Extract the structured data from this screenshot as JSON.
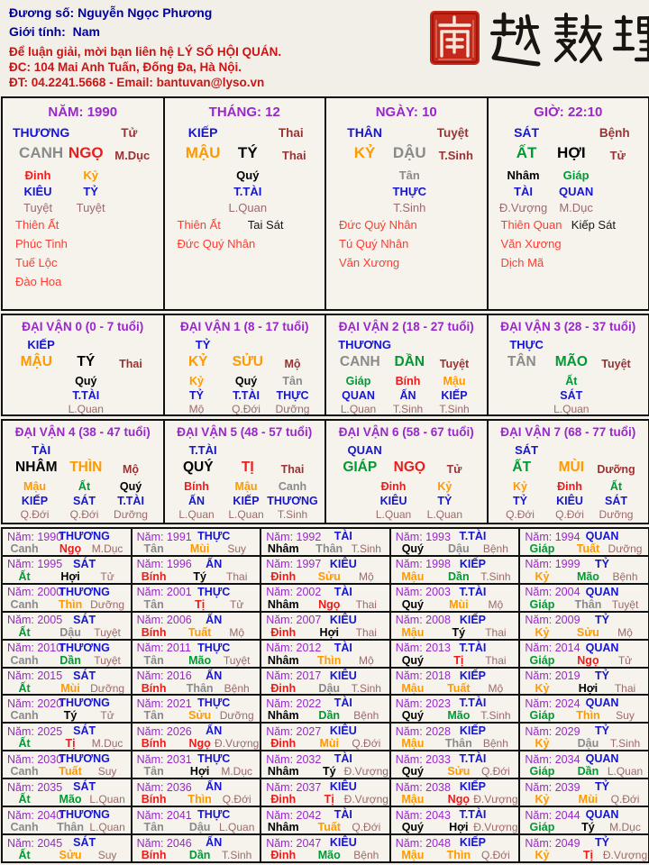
{
  "header": {
    "owner_label": "Đương số:",
    "owner_name": "Nguyễn Ngọc Phương",
    "gender_label": "Giới tính:",
    "gender_value": "Nam",
    "contact_line1": "Để luận giải, mời bạn liên hệ LÝ SỐ HỘI QUÁN.",
    "contact_line2": "ĐC: 104 Mai Anh Tuấn, Đống Đa, Hà Nội.",
    "contact_line3": "ĐT: 04.2241.5668 - Email: bantuvan@lyso.vn"
  },
  "brand": {
    "seal_char": "南",
    "calligraphy": "越數理"
  },
  "colors": {
    "paper": "#f6f3ed",
    "navy": "#00009b",
    "hred": "#cc1414",
    "purple": "#9a27cc",
    "blue": "#1616d1",
    "gray": "#8a8a8a",
    "red": "#ea1c1c",
    "orange": "#ff9900",
    "green": "#009933",
    "black": "#000000",
    "maroon": "#993333",
    "rose": "#9c6a6a",
    "star_red": "#ff3b30",
    "seal_red": "#c5291c"
  },
  "pillars": [
    {
      "title": "NĂM: 1990",
      "god": "THƯƠNG",
      "god_stage": "Tử",
      "stem": "CANH",
      "stem_color": "gray",
      "branch": "NGỌ",
      "branch_color": "red",
      "stage": "M.Dục",
      "hidden": [
        {
          "stem": "Đinh",
          "color": "red",
          "god": "KIÊU",
          "stage": "Tuyệt"
        },
        {
          "stem": "Kỷ",
          "color": "orange",
          "god": "TỶ",
          "stage": "Tuyệt"
        }
      ],
      "stars": [
        "Thiên Ất",
        "Phúc Tinh",
        "Tuế Lộc",
        "Đào Hoa"
      ],
      "stars_black": []
    },
    {
      "title": "THÁNG: 12",
      "god": "KIẾP",
      "god_stage": "Thai",
      "stem": "MẬU",
      "stem_color": "orange",
      "branch": "TÝ",
      "branch_color": "black",
      "stage": "Thai",
      "hidden": [
        {
          "stem": "Quý",
          "color": "black",
          "god": "T.TÀI",
          "stage": "L.Quan"
        }
      ],
      "stars": [
        "Thiên Ất",
        "Đức Quý Nhân"
      ],
      "stars_black": [
        "Tai Sát"
      ]
    },
    {
      "title": "NGÀY: 10",
      "god": "THÂN",
      "god_stage": "Tuyệt",
      "stem": "KỶ",
      "stem_color": "orange",
      "branch": "DẬU",
      "branch_color": "gray",
      "stage": "T.Sinh",
      "hidden": [
        {
          "stem": "Tân",
          "color": "gray",
          "god": "THỰC",
          "stage": "T.Sinh"
        }
      ],
      "stars": [
        "Đức Quý Nhân",
        "Tú Quý Nhân",
        "Văn Xương"
      ],
      "stars_black": []
    },
    {
      "title": "GIỜ: 22:10",
      "god": "SÁT",
      "god_stage": "Bệnh",
      "stem": "ẤT",
      "stem_color": "green",
      "branch": "HỢI",
      "branch_color": "black",
      "stage": "Tử",
      "hidden": [
        {
          "stem": "Nhâm",
          "color": "black",
          "god": "TÀI",
          "stage": "Đ.Vượng"
        },
        {
          "stem": "Giáp",
          "color": "green",
          "god": "QUAN",
          "stage": "M.Dục"
        }
      ],
      "stars": [
        "Thiên Quan",
        "Văn Xương",
        "Dịch Mã"
      ],
      "stars_black": [
        "Kiếp Sát"
      ]
    }
  ],
  "dai_van": [
    {
      "title": "ĐẠI VẬN 0 (0 - 7 tuổi)",
      "god": "KIẾP",
      "stem": "MẬU",
      "stem_color": "orange",
      "branch": "TÝ",
      "branch_color": "black",
      "stage": "Thai",
      "hidden": [
        {
          "stem": "Quý",
          "color": "black",
          "god": "T.TÀI",
          "stage": "L.Quan"
        }
      ]
    },
    {
      "title": "ĐẠI VẬN 1 (8 - 17 tuổi)",
      "god": "TỶ",
      "stem": "KỶ",
      "stem_color": "orange",
      "branch": "SỬU",
      "branch_color": "orange",
      "stage": "Mộ",
      "hidden": [
        {
          "stem": "Kỷ",
          "color": "orange",
          "god": "TỶ",
          "stage": "Mộ"
        },
        {
          "stem": "Quý",
          "color": "black",
          "god": "T.TÀI",
          "stage": "Q.Đới"
        },
        {
          "stem": "Tân",
          "color": "gray",
          "god": "THỰC",
          "stage": "Dưỡng"
        }
      ]
    },
    {
      "title": "ĐẠI VẬN 2 (18 - 27 tuổi)",
      "god": "THƯƠNG",
      "stem": "CANH",
      "stem_color": "gray",
      "branch": "DẦN",
      "branch_color": "green",
      "stage": "Tuyệt",
      "hidden": [
        {
          "stem": "Giáp",
          "color": "green",
          "god": "QUAN",
          "stage": "L.Quan"
        },
        {
          "stem": "Bính",
          "color": "red",
          "god": "ẤN",
          "stage": "T.Sinh"
        },
        {
          "stem": "Mậu",
          "color": "orange",
          "god": "KIẾP",
          "stage": "T.Sinh"
        }
      ]
    },
    {
      "title": "ĐẠI VẬN 3 (28 - 37 tuổi)",
      "god": "THỰC",
      "stem": "TÂN",
      "stem_color": "gray",
      "branch": "MÃO",
      "branch_color": "green",
      "stage": "Tuyệt",
      "hidden": [
        {
          "stem": "Ất",
          "color": "green",
          "god": "SÁT",
          "stage": "L.Quan"
        }
      ]
    },
    {
      "title": "ĐẠI VẬN 4 (38 - 47 tuổi)",
      "god": "TÀI",
      "stem": "NHÂM",
      "stem_color": "black",
      "branch": "THÌN",
      "branch_color": "orange",
      "stage": "Mộ",
      "hidden": [
        {
          "stem": "Mậu",
          "color": "orange",
          "god": "KIẾP",
          "stage": "Q.Đới"
        },
        {
          "stem": "Ất",
          "color": "green",
          "god": "SÁT",
          "stage": "Q.Đới"
        },
        {
          "stem": "Quý",
          "color": "black",
          "god": "T.TÀI",
          "stage": "Dưỡng"
        }
      ]
    },
    {
      "title": "ĐẠI VẬN 5 (48 - 57 tuổi)",
      "god": "T.TÀI",
      "stem": "QUÝ",
      "stem_color": "black",
      "branch": "TỊ",
      "branch_color": "red",
      "stage": "Thai",
      "hidden": [
        {
          "stem": "Bính",
          "color": "red",
          "god": "ẤN",
          "stage": "L.Quan"
        },
        {
          "stem": "Mậu",
          "color": "orange",
          "god": "KIẾP",
          "stage": "L.Quan"
        },
        {
          "stem": "Canh",
          "color": "gray",
          "god": "THƯƠNG",
          "stage": "T.Sinh"
        }
      ]
    },
    {
      "title": "ĐẠI VẬN 6 (58 - 67 tuổi)",
      "god": "QUAN",
      "stem": "GIÁP",
      "stem_color": "green",
      "branch": "NGỌ",
      "branch_color": "red",
      "stage": "Tử",
      "hidden": [
        {
          "stem": "Đinh",
          "color": "red",
          "god": "KIÊU",
          "stage": "L.Quan"
        },
        {
          "stem": "Kỷ",
          "color": "orange",
          "god": "TỶ",
          "stage": "L.Quan"
        }
      ]
    },
    {
      "title": "ĐẠI VẬN 7 (68 - 77 tuổi)",
      "god": "SÁT",
      "stem": "ẤT",
      "stem_color": "green",
      "branch": "MÙI",
      "branch_color": "orange",
      "stage": "Dưỡng",
      "hidden": [
        {
          "stem": "Kỷ",
          "color": "orange",
          "god": "TỶ",
          "stage": "Q.Đới"
        },
        {
          "stem": "Đinh",
          "color": "red",
          "god": "KIÊU",
          "stage": "Q.Đới"
        },
        {
          "stem": "Ất",
          "color": "green",
          "god": "SÁT",
          "stage": "Dưỡng"
        }
      ]
    }
  ],
  "year_label_prefix": "Năm:",
  "years_format": [
    "year",
    "stem",
    "stem_color",
    "branch",
    "branch_color",
    "god",
    "stage"
  ],
  "years": [
    [
      "1990",
      "Canh",
      "gray",
      "Ngọ",
      "red",
      "THƯƠNG",
      "M.Dục"
    ],
    [
      "1991",
      "Tân",
      "gray",
      "Mùi",
      "orange",
      "THỰC",
      "Suy"
    ],
    [
      "1992",
      "Nhâm",
      "black",
      "Thân",
      "gray",
      "TÀI",
      "T.Sinh"
    ],
    [
      "1993",
      "Quý",
      "black",
      "Dậu",
      "gray",
      "T.TÀI",
      "Bệnh"
    ],
    [
      "1994",
      "Giáp",
      "green",
      "Tuất",
      "orange",
      "QUAN",
      "Dưỡng"
    ],
    [
      "1995",
      "Ất",
      "green",
      "Hợi",
      "black",
      "SÁT",
      "Tử"
    ],
    [
      "1996",
      "Bính",
      "red",
      "Tý",
      "black",
      "ẤN",
      "Thai"
    ],
    [
      "1997",
      "Đinh",
      "red",
      "Sửu",
      "orange",
      "KIÊU",
      "Mộ"
    ],
    [
      "1998",
      "Mậu",
      "orange",
      "Dần",
      "green",
      "KIẾP",
      "T.Sinh"
    ],
    [
      "1999",
      "Kỷ",
      "orange",
      "Mão",
      "green",
      "TỶ",
      "Bệnh"
    ],
    [
      "2000",
      "Canh",
      "gray",
      "Thìn",
      "orange",
      "THƯƠNG",
      "Dưỡng"
    ],
    [
      "2001",
      "Tân",
      "gray",
      "Tị",
      "red",
      "THỰC",
      "Tử"
    ],
    [
      "2002",
      "Nhâm",
      "black",
      "Ngọ",
      "red",
      "TÀI",
      "Thai"
    ],
    [
      "2003",
      "Quý",
      "black",
      "Mùi",
      "orange",
      "T.TÀI",
      "Mộ"
    ],
    [
      "2004",
      "Giáp",
      "green",
      "Thân",
      "gray",
      "QUAN",
      "Tuyệt"
    ],
    [
      "2005",
      "Ất",
      "green",
      "Dậu",
      "gray",
      "SÁT",
      "Tuyệt"
    ],
    [
      "2006",
      "Bính",
      "red",
      "Tuất",
      "orange",
      "ẤN",
      "Mộ"
    ],
    [
      "2007",
      "Đinh",
      "red",
      "Hợi",
      "black",
      "KIÊU",
      "Thai"
    ],
    [
      "2008",
      "Mậu",
      "orange",
      "Tý",
      "black",
      "KIẾP",
      "Thai"
    ],
    [
      "2009",
      "Kỷ",
      "orange",
      "Sửu",
      "orange",
      "TỶ",
      "Mộ"
    ],
    [
      "2010",
      "Canh",
      "gray",
      "Dần",
      "green",
      "THƯƠNG",
      "Tuyệt"
    ],
    [
      "2011",
      "Tân",
      "gray",
      "Mão",
      "green",
      "THỰC",
      "Tuyệt"
    ],
    [
      "2012",
      "Nhâm",
      "black",
      "Thìn",
      "orange",
      "TÀI",
      "Mộ"
    ],
    [
      "2013",
      "Quý",
      "black",
      "Tị",
      "red",
      "T.TÀI",
      "Thai"
    ],
    [
      "2014",
      "Giáp",
      "green",
      "Ngọ",
      "red",
      "QUAN",
      "Tử"
    ],
    [
      "2015",
      "Ất",
      "green",
      "Mùi",
      "orange",
      "SÁT",
      "Dưỡng"
    ],
    [
      "2016",
      "Bính",
      "red",
      "Thân",
      "gray",
      "ẤN",
      "Bệnh"
    ],
    [
      "2017",
      "Đinh",
      "red",
      "Dậu",
      "gray",
      "KIÊU",
      "T.Sinh"
    ],
    [
      "2018",
      "Mậu",
      "orange",
      "Tuất",
      "orange",
      "KIẾP",
      "Mộ"
    ],
    [
      "2019",
      "Kỷ",
      "orange",
      "Hợi",
      "black",
      "TỶ",
      "Thai"
    ],
    [
      "2020",
      "Canh",
      "gray",
      "Tý",
      "black",
      "THƯƠNG",
      "Tử"
    ],
    [
      "2021",
      "Tân",
      "gray",
      "Sửu",
      "orange",
      "THỰC",
      "Dưỡng"
    ],
    [
      "2022",
      "Nhâm",
      "black",
      "Dần",
      "green",
      "TÀI",
      "Bệnh"
    ],
    [
      "2023",
      "Quý",
      "black",
      "Mão",
      "green",
      "T.TÀI",
      "T.Sinh"
    ],
    [
      "2024",
      "Giáp",
      "green",
      "Thìn",
      "orange",
      "QUAN",
      "Suy"
    ],
    [
      "2025",
      "Ất",
      "green",
      "Tị",
      "red",
      "SÁT",
      "M.Dục"
    ],
    [
      "2026",
      "Bính",
      "red",
      "Ngọ",
      "red",
      "ẤN",
      "Đ.Vượng"
    ],
    [
      "2027",
      "Đinh",
      "red",
      "Mùi",
      "orange",
      "KIÊU",
      "Q.Đới"
    ],
    [
      "2028",
      "Mậu",
      "orange",
      "Thân",
      "gray",
      "KIẾP",
      "Bệnh"
    ],
    [
      "2029",
      "Kỷ",
      "orange",
      "Dậu",
      "gray",
      "TỶ",
      "T.Sinh"
    ],
    [
      "2030",
      "Canh",
      "gray",
      "Tuất",
      "orange",
      "THƯƠNG",
      "Suy"
    ],
    [
      "2031",
      "Tân",
      "gray",
      "Hợi",
      "black",
      "THỰC",
      "M.Dục"
    ],
    [
      "2032",
      "Nhâm",
      "black",
      "Tý",
      "black",
      "TÀI",
      "Đ.Vượng"
    ],
    [
      "2033",
      "Quý",
      "black",
      "Sửu",
      "orange",
      "T.TÀI",
      "Q.Đới"
    ],
    [
      "2034",
      "Giáp",
      "green",
      "Dần",
      "green",
      "QUAN",
      "L.Quan"
    ],
    [
      "2035",
      "Ất",
      "green",
      "Mão",
      "green",
      "SÁT",
      "L.Quan"
    ],
    [
      "2036",
      "Bính",
      "red",
      "Thìn",
      "orange",
      "ẤN",
      "Q.Đới"
    ],
    [
      "2037",
      "Đinh",
      "red",
      "Tị",
      "red",
      "KIÊU",
      "Đ.Vượng"
    ],
    [
      "2038",
      "Mậu",
      "orange",
      "Ngọ",
      "red",
      "KIẾP",
      "Đ.Vượng"
    ],
    [
      "2039",
      "Kỷ",
      "orange",
      "Mùi",
      "orange",
      "TỶ",
      "Q.Đới"
    ],
    [
      "2040",
      "Canh",
      "gray",
      "Thân",
      "gray",
      "THƯƠNG",
      "L.Quan"
    ],
    [
      "2041",
      "Tân",
      "gray",
      "Dậu",
      "gray",
      "THỰC",
      "L.Quan"
    ],
    [
      "2042",
      "Nhâm",
      "black",
      "Tuất",
      "orange",
      "TÀI",
      "Q.Đới"
    ],
    [
      "2043",
      "Quý",
      "black",
      "Hợi",
      "black",
      "T.TÀI",
      "Đ.Vượng"
    ],
    [
      "2044",
      "Giáp",
      "green",
      "Tý",
      "black",
      "QUAN",
      "M.Dục"
    ],
    [
      "2045",
      "Ất",
      "green",
      "Sửu",
      "orange",
      "SÁT",
      "Suy"
    ],
    [
      "2046",
      "Bính",
      "red",
      "Dần",
      "green",
      "ẤN",
      "T.Sinh"
    ],
    [
      "2047",
      "Đinh",
      "red",
      "Mão",
      "green",
      "KIÊU",
      "Bệnh"
    ],
    [
      "2048",
      "Mậu",
      "orange",
      "Thìn",
      "orange",
      "KIẾP",
      "Q.Đới"
    ],
    [
      "2049",
      "Kỷ",
      "orange",
      "Tị",
      "red",
      "TỶ",
      "Đ.Vượng"
    ]
  ]
}
